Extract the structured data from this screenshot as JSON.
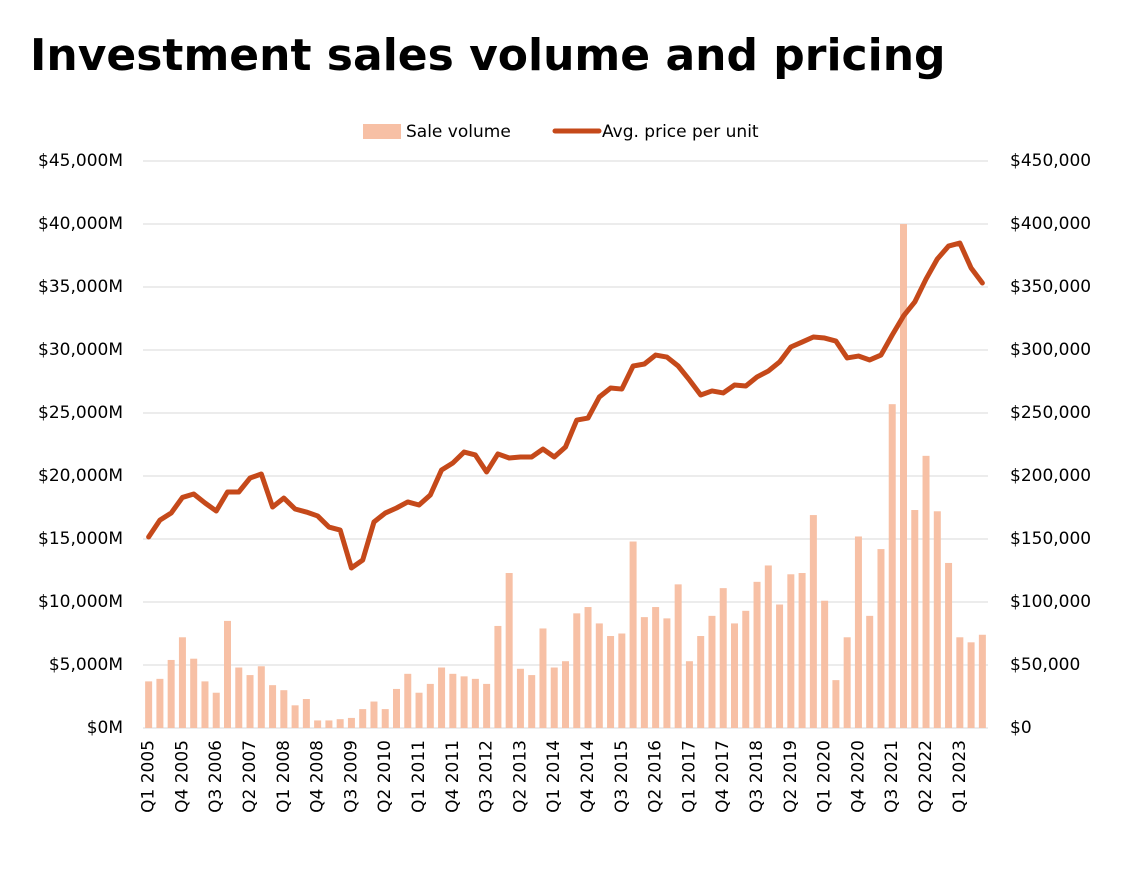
{
  "chart_data": {
    "type": "bar-line",
    "title": "Investment sales volume and pricing",
    "categories": [
      "Q1 2005",
      null,
      null,
      "Q4 2005",
      null,
      null,
      "Q3 2006",
      null,
      null,
      "Q2 2007",
      null,
      null,
      "Q1 2008",
      null,
      null,
      "Q4 2008",
      null,
      null,
      "Q3 2009",
      null,
      null,
      "Q2 2010",
      null,
      null,
      "Q1 2011",
      null,
      null,
      "Q4 2011",
      null,
      null,
      "Q3 2012",
      null,
      null,
      "Q2 2013",
      null,
      null,
      "Q1 2014",
      null,
      null,
      "Q4 2014",
      null,
      null,
      "Q3 2015",
      null,
      null,
      "Q2 2016",
      null,
      null,
      "Q1 2017",
      null,
      null,
      "Q4 2017",
      null,
      null,
      "Q3 2018",
      null,
      null,
      "Q2 2019",
      null,
      null,
      "Q1 2020",
      null,
      null,
      "Q4 2020",
      null,
      null,
      "Q3 2021",
      null,
      null,
      "Q2 2022",
      null,
      null,
      "Q1 2023",
      null,
      null
    ],
    "series": [
      {
        "name": "Sale volume",
        "type": "bar",
        "color": "#f7c0a5",
        "values": [
          3700,
          3900,
          5400,
          7200,
          5500,
          3700,
          2800,
          8500,
          4800,
          4200,
          4900,
          3400,
          3000,
          1800,
          2300,
          600,
          600,
          700,
          800,
          1500,
          2100,
          1500,
          3100,
          4300,
          2800,
          3500,
          4800,
          4300,
          4100,
          3900,
          3500,
          8100,
          12300,
          4700,
          4200,
          7900,
          4800,
          5300,
          9100,
          9600,
          8300,
          7300,
          7500,
          14800,
          8800,
          9600,
          8700,
          11400,
          5300,
          7300,
          8900,
          11100,
          8300,
          9300,
          11600,
          12900,
          9800,
          12200,
          12300,
          16900,
          10100,
          3800,
          7200,
          15200,
          8900,
          14200,
          25700,
          40000,
          17300,
          21600,
          17200,
          13100,
          7200,
          6800,
          7400
        ]
      },
      {
        "name": "Avg. price per unit",
        "type": "line",
        "axis": "y2",
        "color": "#c5491a",
        "values": [
          151600,
          165000,
          170600,
          183000,
          185700,
          178600,
          172200,
          187300,
          187300,
          198400,
          201600,
          175400,
          182500,
          173800,
          171400,
          168300,
          159500,
          157100,
          127000,
          133300,
          163500,
          170600,
          174600,
          179400,
          177000,
          184900,
          204800,
          210300,
          219000,
          216700,
          203200,
          217500,
          214300,
          215100,
          215100,
          221400,
          215100,
          223000,
          244400,
          246000,
          262700,
          269800,
          269000,
          287300,
          288900,
          296000,
          294400,
          287300,
          276200,
          264300,
          267500,
          265900,
          272200,
          271400,
          278600,
          283300,
          290500,
          302400,
          306300,
          310300,
          309500,
          307100,
          293700,
          295200,
          292100,
          296000,
          311900,
          327000,
          338100,
          356300,
          372200,
          382500,
          384900,
          365100,
          353200
        ]
      }
    ],
    "ylim": [
      0,
      45000
    ],
    "yticks": [
      {
        "value": 0,
        "label": "$0M"
      },
      {
        "value": 5000,
        "label": "$5,000M"
      },
      {
        "value": 10000,
        "label": "$10,000M"
      },
      {
        "value": 15000,
        "label": "$15,000M"
      },
      {
        "value": 20000,
        "label": "$20,000M"
      },
      {
        "value": 25000,
        "label": "$25,000M"
      },
      {
        "value": 30000,
        "label": "$30,000M"
      },
      {
        "value": 35000,
        "label": "$35,000M"
      },
      {
        "value": 40000,
        "label": "$40,000M"
      },
      {
        "value": 45000,
        "label": "$45,000M"
      }
    ],
    "y2lim": [
      0,
      450000
    ],
    "y2ticks": [
      {
        "value": 0,
        "label": "$0"
      },
      {
        "value": 50000,
        "label": "$50,000"
      },
      {
        "value": 100000,
        "label": "$100,000"
      },
      {
        "value": 150000,
        "label": "$150,000"
      },
      {
        "value": 200000,
        "label": "$200,000"
      },
      {
        "value": 250000,
        "label": "$250,000"
      },
      {
        "value": 300000,
        "label": "$300,000"
      },
      {
        "value": 350000,
        "label": "$350,000"
      },
      {
        "value": 400000,
        "label": "$400,000"
      },
      {
        "value": 450000,
        "label": "$450,000"
      }
    ],
    "grid": true,
    "legend": "top"
  }
}
